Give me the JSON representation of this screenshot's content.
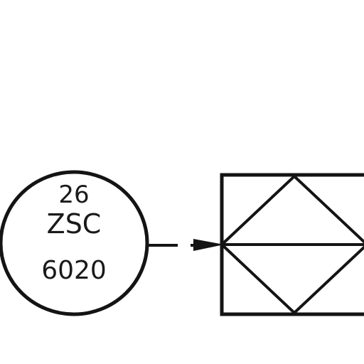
{
  "diagram": {
    "instrument_bubble": {
      "tag_number": "26",
      "function_code": "ZSC",
      "loop_number": "6020"
    },
    "signal_line": {
      "style": "dashed",
      "arrow_direction": "right"
    },
    "symbol": {
      "type": "square-with-diamond",
      "inner": [
        "diamond",
        "horizontal-bar"
      ]
    },
    "colors": {
      "ink": "#141414",
      "background": "#ffffff"
    }
  }
}
